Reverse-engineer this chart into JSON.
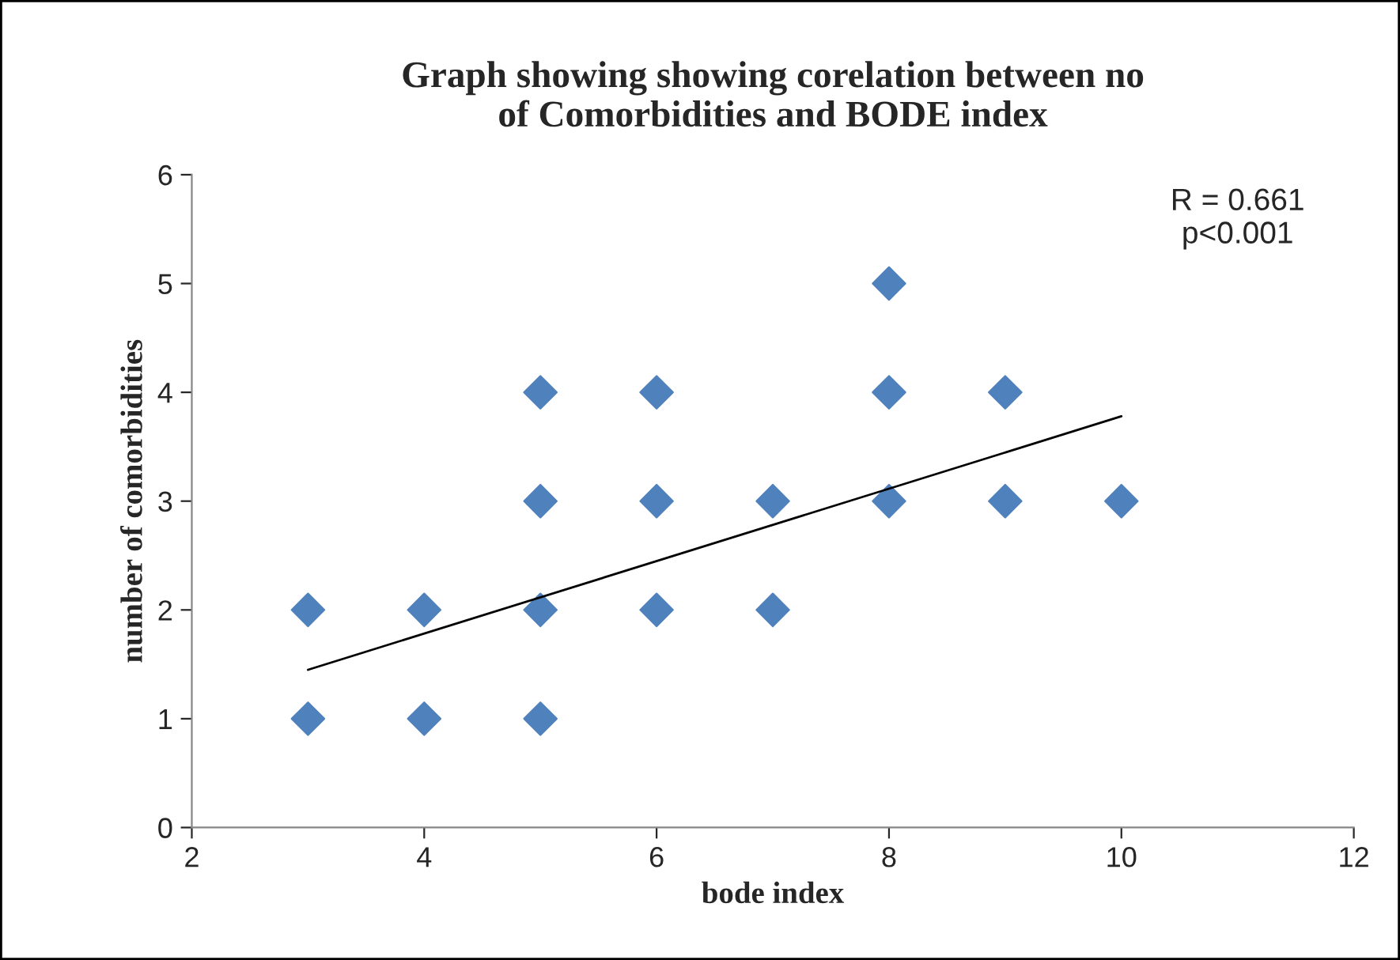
{
  "chart_data": {
    "type": "scatter",
    "title": "Graph showing showing corelation between no\nof Comorbidities and BODE index",
    "xlabel": "bode index",
    "ylabel": "number of comorbidities",
    "annotations": [
      "R = 0.661\np<0.001"
    ],
    "series": [
      {
        "color": "#4f81bd",
        "marker": "diamond",
        "x": [
          3,
          3,
          4,
          4,
          5,
          5,
          5,
          5,
          6,
          6,
          6,
          7,
          7,
          8,
          8,
          8,
          9,
          9,
          10
        ],
        "values": [
          2,
          1,
          2,
          1,
          4,
          3,
          2,
          1,
          4,
          3,
          2,
          3,
          2,
          5,
          4,
          3,
          4,
          3,
          3
        ]
      },
      {
        "type": "line",
        "color": "#000000",
        "marker": "none",
        "x": [
          3,
          10
        ],
        "values": [
          1.45,
          3.78
        ]
      }
    ],
    "xlim": [
      2,
      12
    ],
    "xticks": [
      2,
      4,
      6,
      8,
      10,
      12
    ],
    "ylim": [
      0,
      6
    ],
    "yticks": [
      0,
      1,
      2,
      3,
      4,
      5,
      6
    ],
    "grid": false,
    "legend": false
  }
}
